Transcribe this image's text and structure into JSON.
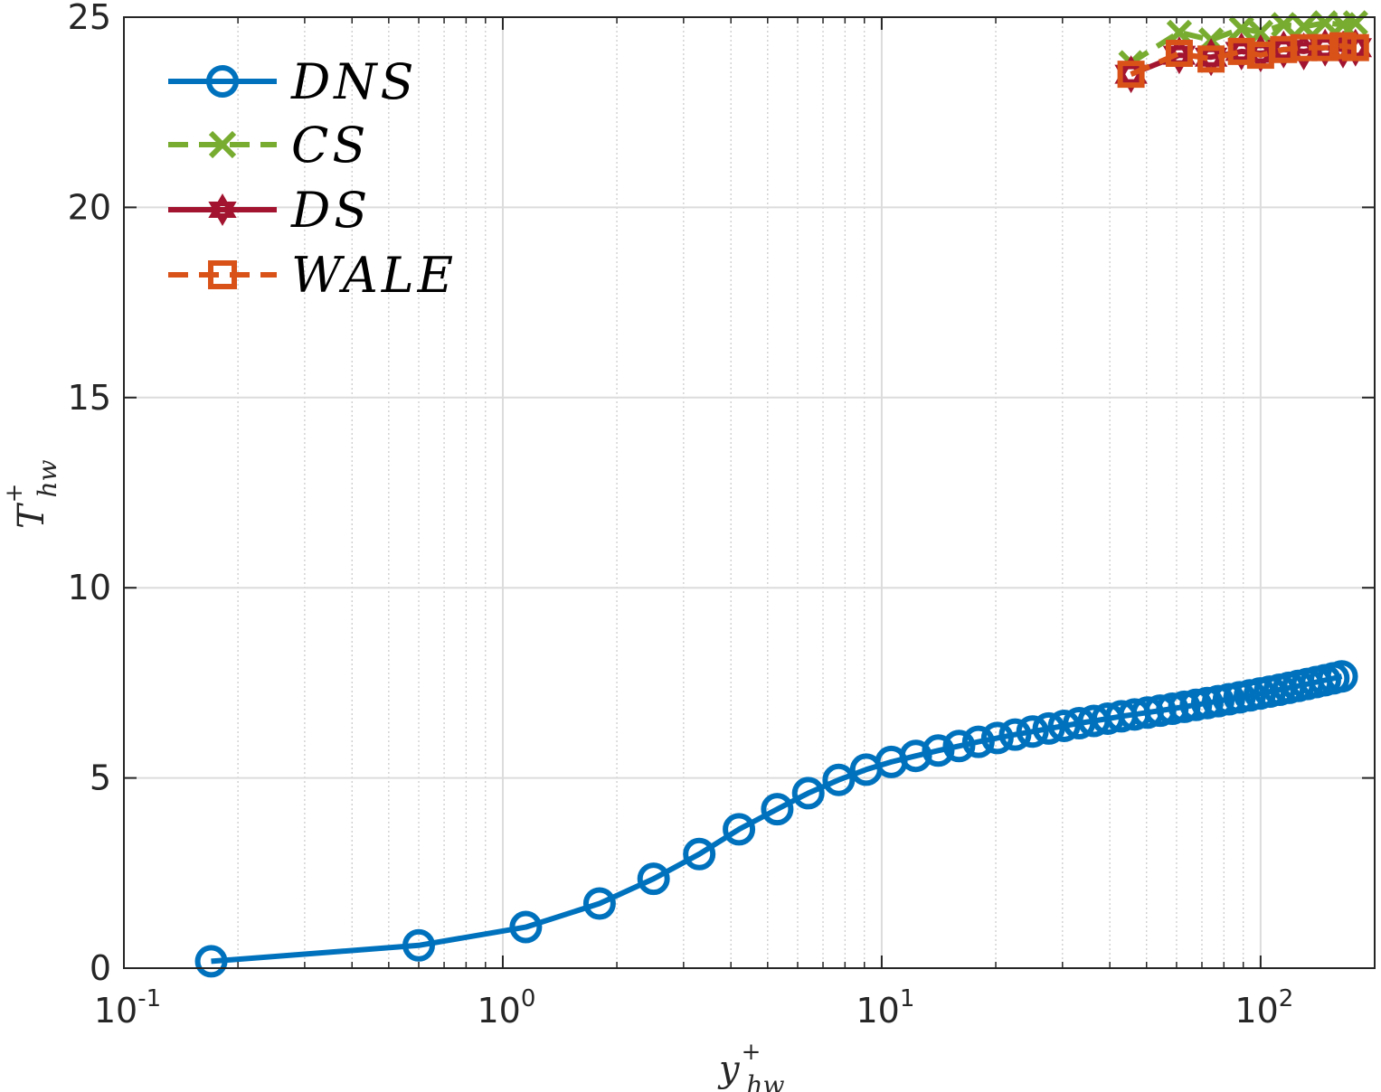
{
  "chart_data": {
    "type": "line",
    "title": "",
    "xscale": "log",
    "xlim": [
      0.1,
      200
    ],
    "ylim": [
      0,
      25
    ],
    "grid": true,
    "xlabel": {
      "base": "y",
      "sup": "+",
      "sub": "hw"
    },
    "ylabel": {
      "base": "T",
      "sup": "+",
      "sub": "hw"
    },
    "xticks": [
      {
        "value": 0.1,
        "base": "10",
        "exp": "-1"
      },
      {
        "value": 1,
        "base": "10",
        "exp": "0"
      },
      {
        "value": 10,
        "base": "10",
        "exp": "1"
      },
      {
        "value": 100,
        "base": "10",
        "exp": "2"
      }
    ],
    "yticks": [
      {
        "value": 0,
        "label": "0"
      },
      {
        "value": 5,
        "label": "5"
      },
      {
        "value": 10,
        "label": "10"
      },
      {
        "value": 15,
        "label": "15"
      },
      {
        "value": 20,
        "label": "20"
      },
      {
        "value": 25,
        "label": "25"
      }
    ],
    "legend_position": "top-left",
    "series": [
      {
        "name": "DNS",
        "color": "#0072BD",
        "line": "solid",
        "marker": "circle",
        "x": [
          0.17,
          0.6,
          1.15,
          1.8,
          2.5,
          3.3,
          4.2,
          5.3,
          6.4,
          7.7,
          9.1,
          10.6,
          12.3,
          14.1,
          16.0,
          18.0,
          20.2,
          22.5,
          25.0,
          27.6,
          30.3,
          33.2,
          36.3,
          39.5,
          42.9,
          46.5,
          50.3,
          54.3,
          58.5,
          62.9,
          67.5,
          72.3,
          77.3,
          82.5,
          88.0,
          93.7,
          99.6,
          105.8,
          112.2,
          118.8,
          125.7,
          132.8,
          140.2,
          147.8,
          155.6,
          163.7
        ],
        "y": [
          0.18,
          0.6,
          1.08,
          1.7,
          2.35,
          3.0,
          3.65,
          4.18,
          4.6,
          4.95,
          5.22,
          5.42,
          5.58,
          5.72,
          5.84,
          5.95,
          6.05,
          6.14,
          6.22,
          6.3,
          6.37,
          6.44,
          6.5,
          6.56,
          6.62,
          6.67,
          6.72,
          6.77,
          6.82,
          6.87,
          6.92,
          6.97,
          7.02,
          7.07,
          7.12,
          7.17,
          7.22,
          7.27,
          7.32,
          7.37,
          7.42,
          7.47,
          7.52,
          7.57,
          7.62,
          7.67
        ]
      },
      {
        "name": "CS",
        "color": "#77AC30",
        "line": "dashed",
        "marker": "x",
        "x": [
          45.5,
          61.0,
          74.0,
          89.0,
          100.0,
          115.0,
          130.0,
          148.0,
          165.0,
          178.0
        ],
        "y": [
          23.8,
          24.6,
          24.4,
          24.7,
          24.6,
          24.8,
          24.75,
          24.85,
          24.8,
          24.85
        ]
      },
      {
        "name": "DS",
        "color": "#A2142F",
        "line": "solid",
        "marker": "hexagram",
        "x": [
          45.5,
          61.0,
          74.0,
          89.0,
          100.0,
          115.0,
          130.0,
          148.0,
          165.0,
          178.0
        ],
        "y": [
          23.5,
          24.0,
          23.95,
          24.1,
          24.05,
          24.15,
          24.1,
          24.2,
          24.15,
          24.2
        ]
      },
      {
        "name": "WALE",
        "color": "#D95319",
        "line": "dashed",
        "marker": "square",
        "x": [
          45.5,
          61.0,
          74.0,
          89.0,
          100.0,
          115.0,
          130.0,
          148.0,
          165.0,
          178.0
        ],
        "y": [
          23.5,
          24.05,
          23.9,
          24.1,
          24.0,
          24.15,
          24.2,
          24.2,
          24.25,
          24.2
        ]
      }
    ]
  }
}
